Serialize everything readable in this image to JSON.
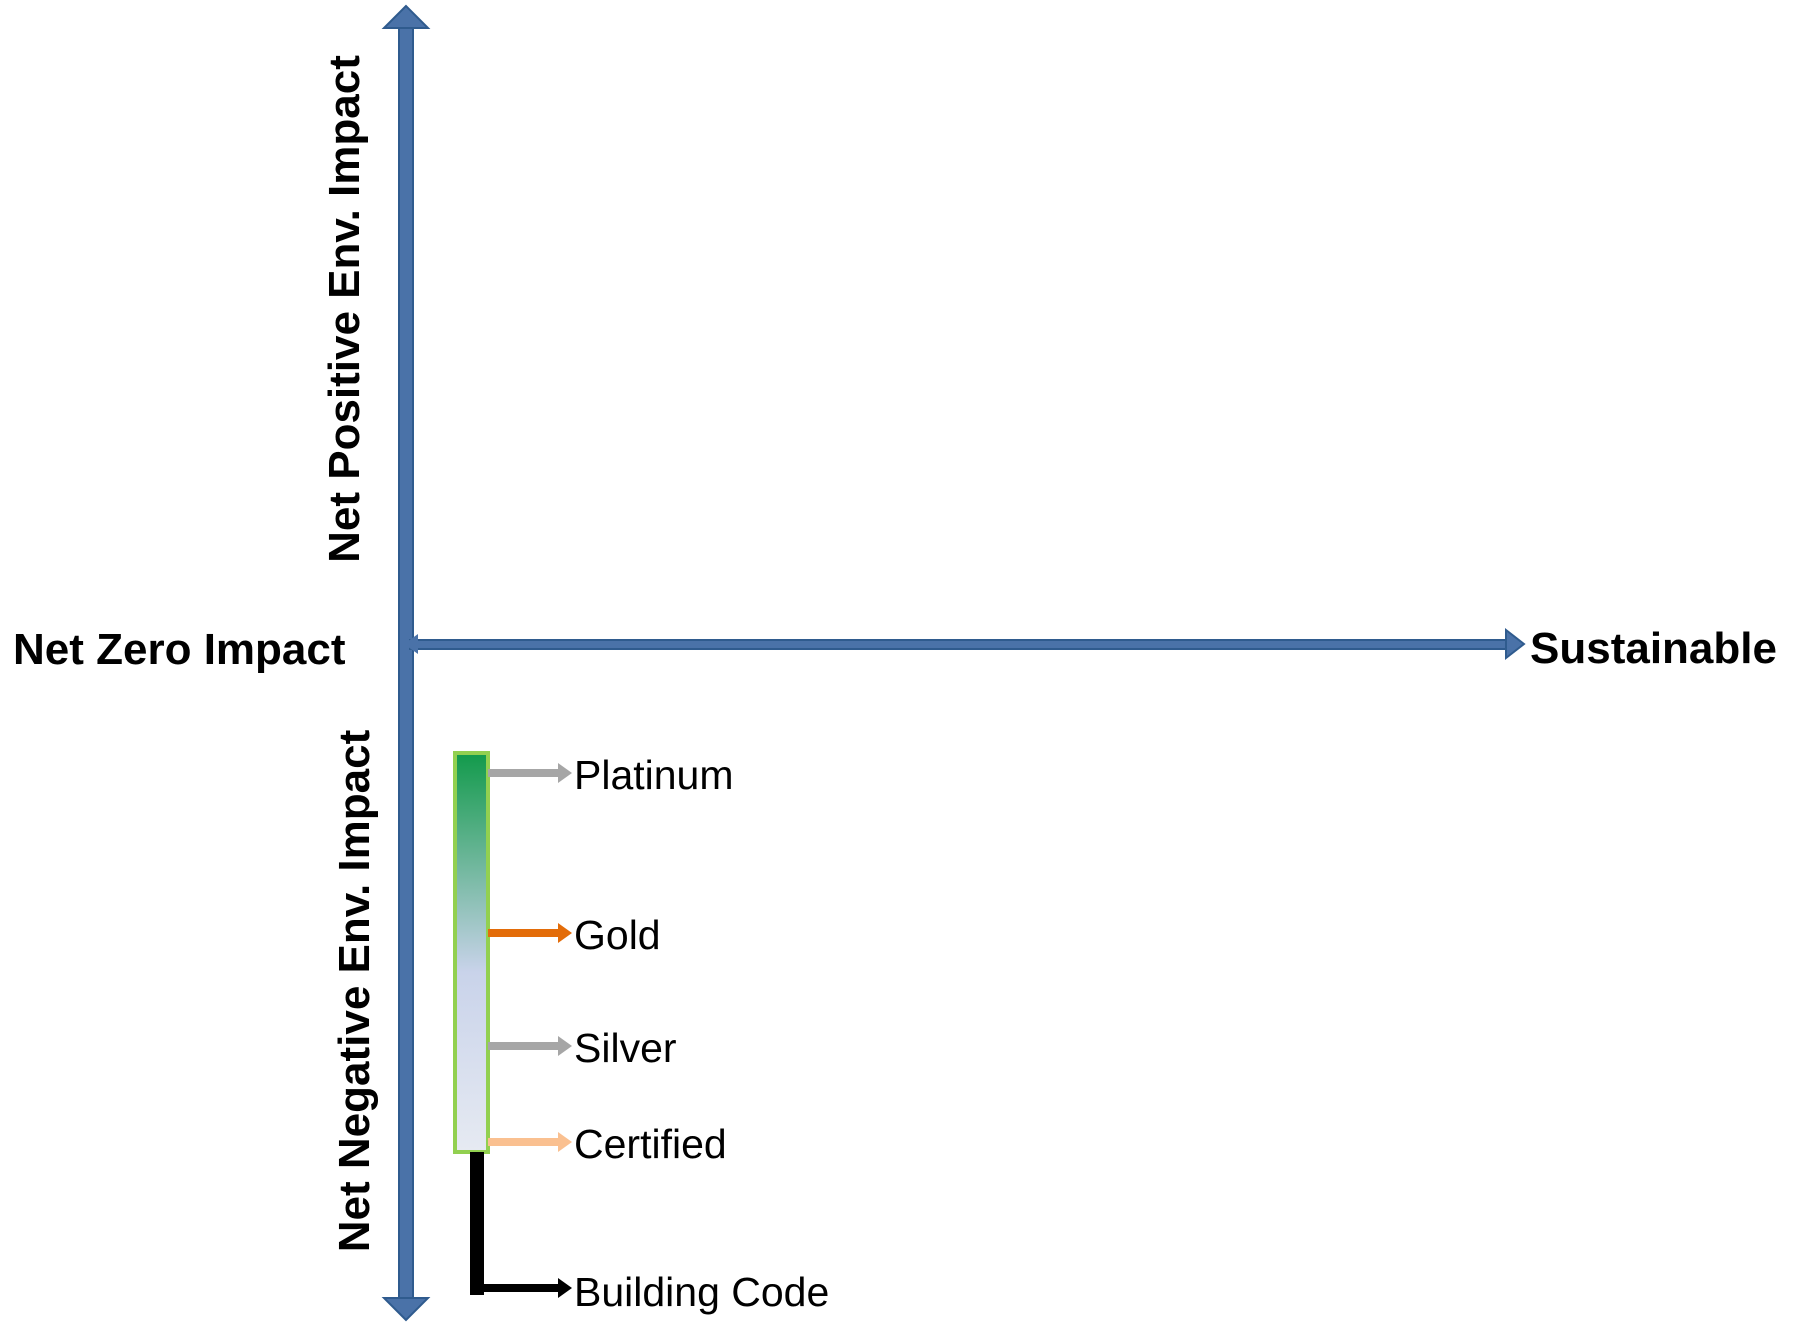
{
  "axes": {
    "vertical_top_label": "Net Positive Env. Impact",
    "vertical_bottom_label": "Net Negative Env. Impact",
    "horizontal_left_label": "Net Zero Impact",
    "horizontal_right_label": "Sustainable",
    "color": "#4A72A8"
  },
  "scale_bar": {
    "gradient_top": "#129A4B",
    "gradient_bottom": "#E6EAF2",
    "border": "#92D050"
  },
  "levels": [
    {
      "label": "Platinum",
      "arrow_color": "#A6A6A6"
    },
    {
      "label": "Gold",
      "arrow_color": "#E36C09"
    },
    {
      "label": "Silver",
      "arrow_color": "#A6A6A6"
    },
    {
      "label": "Certified",
      "arrow_color": "#FAC090"
    },
    {
      "label": "Building Code",
      "arrow_color": "#000000"
    }
  ]
}
